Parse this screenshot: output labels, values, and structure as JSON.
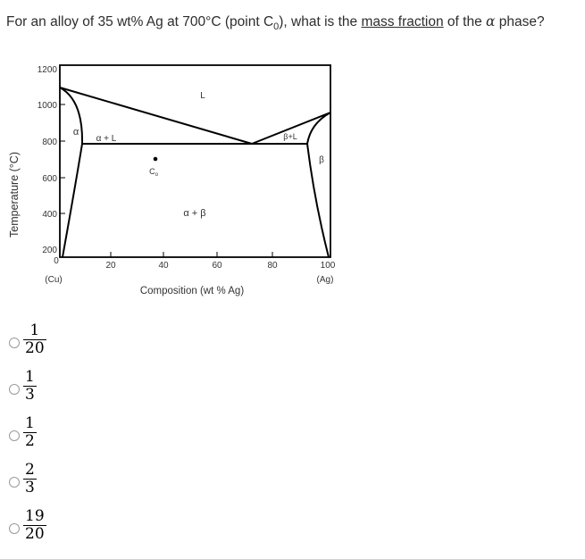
{
  "question": {
    "part1": "For an alloy of 35 wt% Ag at 700°C (point C",
    "sub": "0",
    "part2": "), what is the ",
    "underlined": "mass fraction",
    "part3": " of the ",
    "alpha": "α",
    "part4": " phase?"
  },
  "diagram": {
    "y_axis_label": "Temperature (°C)",
    "x_axis_label": "Composition (wt % Ag)",
    "y_ticks": [
      "1200",
      "1000",
      "800",
      "600",
      "400",
      "200"
    ],
    "x_ticks": [
      "0",
      "20",
      "40",
      "60",
      "80",
      "100"
    ],
    "x_end_labels": {
      "left": "(Cu)",
      "right": "(Ag)"
    },
    "region_labels": {
      "liquid": "L",
      "alpha": "α",
      "alpha_plus_liquid": "α + L",
      "beta_plus_liquid": "β+L",
      "beta": "β",
      "alpha_plus_beta": "α + β",
      "point": "C",
      "point_sub": "o"
    },
    "composition_wt_pct_ag": 35,
    "temperature_c": 700,
    "eutectic": {
      "temperature_c": 780,
      "alpha_max_pct": 8,
      "eutectic_pct": 71.9,
      "beta_min_pct": 91.2
    },
    "melting_points_c": {
      "cu": 1085,
      "ag": 962
    }
  },
  "answers": [
    {
      "numerator": "1",
      "denominator": "20"
    },
    {
      "numerator": "1",
      "denominator": "3"
    },
    {
      "numerator": "1",
      "denominator": "2"
    },
    {
      "numerator": "2",
      "denominator": "3"
    },
    {
      "numerator": "19",
      "denominator": "20"
    }
  ]
}
